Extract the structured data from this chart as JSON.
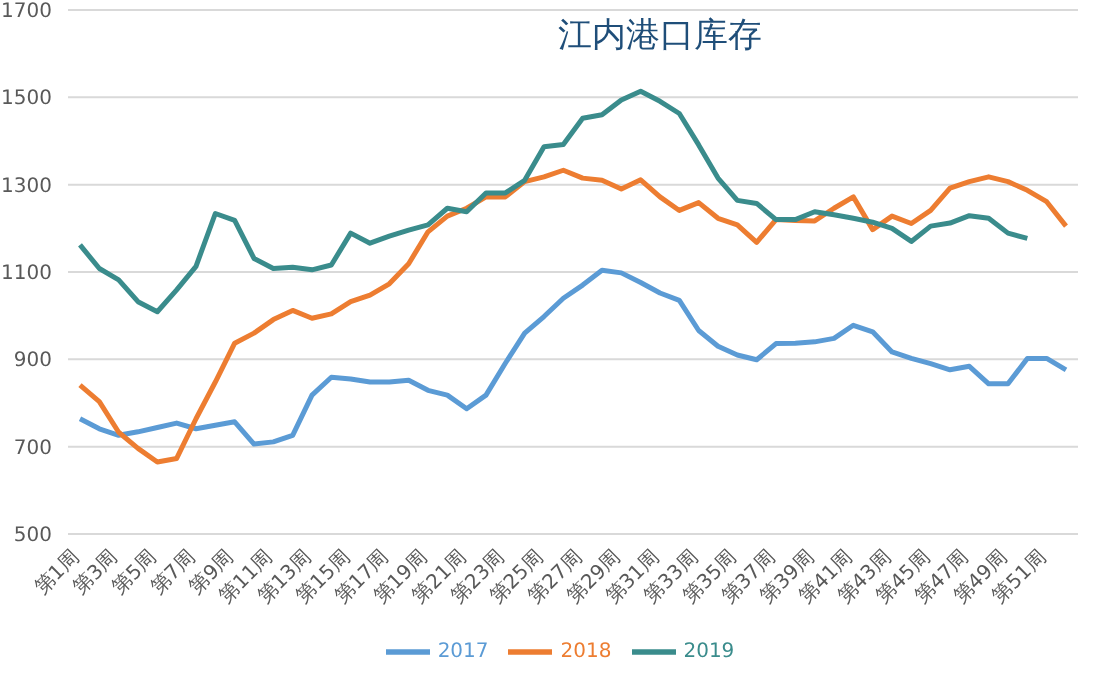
{
  "chart_data": {
    "type": "line",
    "title": "江内港口库存",
    "categories": [
      "第1周",
      null,
      "第3周",
      null,
      "第5周",
      null,
      "第7周",
      null,
      "第9周",
      null,
      "第11周",
      null,
      "第13周",
      null,
      "第15周",
      null,
      "第17周",
      null,
      "第19周",
      null,
      "第21周",
      null,
      "第23周",
      null,
      "第25周",
      null,
      "第27周",
      null,
      "第29周",
      null,
      "第31周",
      null,
      "第33周",
      null,
      "第35周",
      null,
      "第37周",
      null,
      "第39周",
      null,
      "第41周",
      null,
      "第43周",
      null,
      "第45周",
      null,
      "第47周",
      null,
      "第49周",
      null,
      "第51周",
      null
    ],
    "series": [
      {
        "name": "2017",
        "color": "#5b9bd5",
        "values": [
          764,
          741,
          726,
          734,
          744,
          754,
          741,
          749,
          757,
          706,
          711,
          726,
          818,
          859,
          855,
          848,
          848,
          852,
          829,
          818,
          787,
          818,
          891,
          960,
          998,
          1040,
          1070,
          1104,
          1098,
          1076,
          1052,
          1035,
          966,
          930,
          910,
          899,
          936,
          937,
          940,
          948,
          978,
          963,
          917,
          902,
          890,
          876,
          884,
          844,
          844,
          902,
          902,
          876
        ]
      },
      {
        "name": "2018",
        "color": "#ed7d31",
        "values": [
          841,
          803,
          733,
          696,
          665,
          673,
          764,
          848,
          937,
          960,
          991,
          1012,
          994,
          1004,
          1032,
          1047,
          1073,
          1119,
          1192,
          1228,
          1246,
          1272,
          1272,
          1307,
          1318,
          1333,
          1315,
          1310,
          1290,
          1311,
          1272,
          1241,
          1259,
          1223,
          1208,
          1168,
          1220,
          1218,
          1217,
          1246,
          1272,
          1197,
          1228,
          1211,
          1241,
          1292,
          1307,
          1318,
          1307,
          1287,
          1261,
          1205
        ]
      },
      {
        "name": "2019",
        "color": "#3a8c8c",
        "values": [
          1162,
          1108,
          1082,
          1032,
          1009,
          1059,
          1113,
          1234,
          1218,
          1131,
          1108,
          1111,
          1105,
          1116,
          1189,
          1166,
          1182,
          1196,
          1208,
          1246,
          1238,
          1281,
          1281,
          1310,
          1387,
          1392,
          1452,
          1460,
          1494,
          1514,
          1491,
          1463,
          1391,
          1315,
          1264,
          1257,
          1220,
          1220,
          1238,
          1231,
          1223,
          1214,
          1200,
          1170,
          1205,
          1212,
          1229,
          1223,
          1189,
          1177,
          null,
          null
        ]
      }
    ],
    "ylim": [
      500,
      1700
    ],
    "yticks": [
      500,
      700,
      900,
      1100,
      1300,
      1500,
      1700
    ],
    "grid": "y",
    "legend": "bottom",
    "marker": "none",
    "line_style": "solid"
  }
}
